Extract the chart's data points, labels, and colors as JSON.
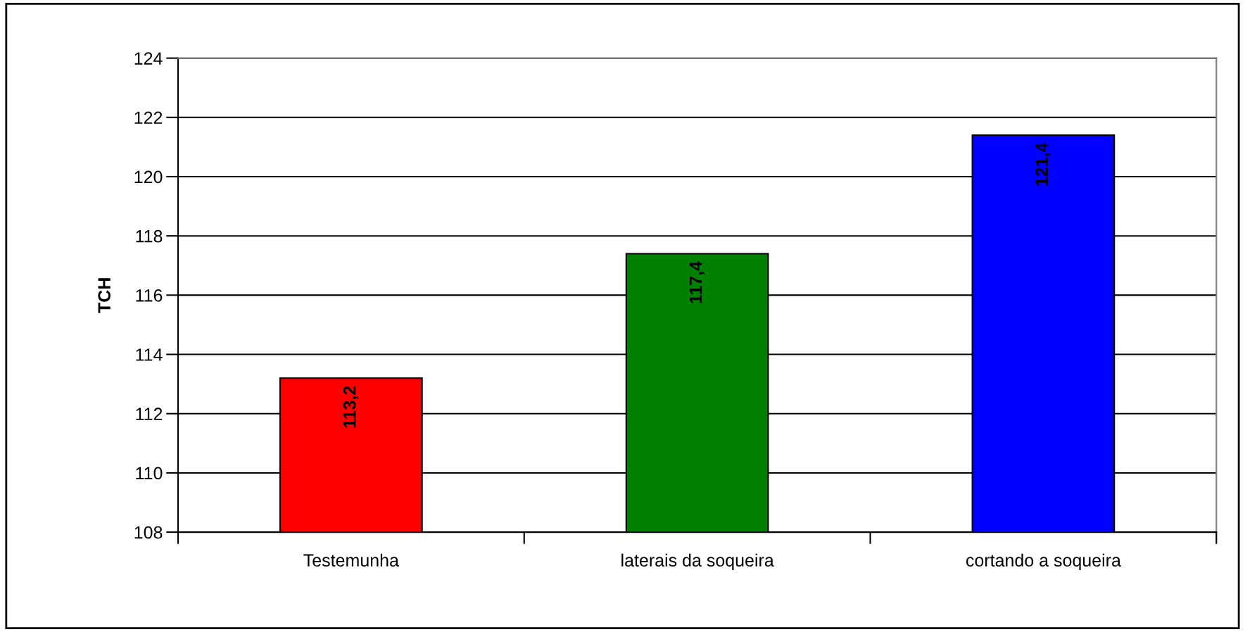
{
  "chart_data": {
    "type": "bar",
    "ylabel": "TCH",
    "categories": [
      "Testemunha",
      "laterais da soqueira",
      "cortando a soqueira"
    ],
    "values": [
      113.2,
      117.4,
      121.4
    ],
    "colors": [
      "#ff0000",
      "#008000",
      "#0000ff"
    ],
    "value_labels": [
      "113,2",
      "117,4",
      "121,4"
    ],
    "ylim": [
      108,
      124
    ],
    "yticks": [
      108,
      110,
      112,
      114,
      116,
      118,
      120,
      122,
      124
    ],
    "grid": "y",
    "legend": false
  }
}
